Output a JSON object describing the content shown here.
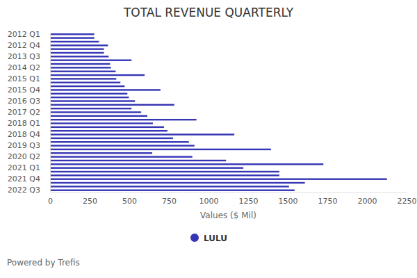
{
  "chart_data": {
    "type": "bar",
    "orientation": "horizontal",
    "title": "TOTAL REVENUE QUARTERLY",
    "xlabel": "Values ($ Mil)",
    "annotations": [
      "Powered by Trefis"
    ],
    "categories": [
      "2012 Q1",
      null,
      null,
      "2012 Q4",
      null,
      null,
      "2013 Q3",
      null,
      null,
      "2014 Q2",
      null,
      null,
      "2015 Q1",
      null,
      null,
      "2015 Q4",
      null,
      null,
      "2016 Q3",
      null,
      null,
      "2017 Q2",
      null,
      null,
      "2018 Q1",
      null,
      null,
      "2018 Q4",
      null,
      null,
      "2019 Q3",
      null,
      null,
      "2020 Q2",
      null,
      null,
      "2021 Q1",
      null,
      null,
      "2021 Q4",
      null,
      null,
      "2022 Q3"
    ],
    "series": [
      {
        "name": "LULU",
        "color": "#3535b5",
        "values": [
          279,
          279,
          309,
          366,
          340,
          340,
          370,
          514,
          379,
          384,
          414,
          597,
          418,
          444,
          471,
          697,
          488,
          497,
          536,
          784,
          514,
          575,
          614,
          924,
          649,
          719,
          741,
          1163,
          776,
          876,
          911,
          1394,
          645,
          898,
          1111,
          1725,
          1220,
          1447,
          1447,
          2126,
          1608,
          1508,
          1543
        ]
      }
    ],
    "xlim": [
      0,
      2250
    ],
    "xticks": [
      0,
      250,
      500,
      750,
      1000,
      1250,
      1500,
      1750,
      2000,
      2250
    ],
    "grid": false,
    "legend": "bottom"
  }
}
